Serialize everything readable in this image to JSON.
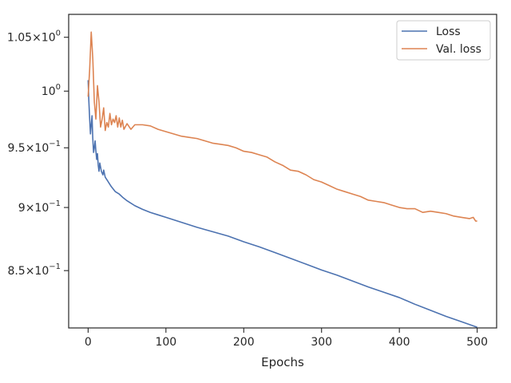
{
  "chart_data": {
    "type": "line",
    "title": "",
    "xlabel": "Epochs",
    "ylabel": "",
    "xlim": [
      -25,
      525
    ],
    "ylim": [
      0.807,
      1.072
    ],
    "yscale": "log",
    "grid": false,
    "legend_position": "top-right",
    "x_ticks": [
      {
        "value": 0,
        "label": "0"
      },
      {
        "value": 100,
        "label": "100"
      },
      {
        "value": 200,
        "label": "200"
      },
      {
        "value": 300,
        "label": "300"
      },
      {
        "value": 400,
        "label": "400"
      },
      {
        "value": 500,
        "label": "500"
      }
    ],
    "y_ticks": [
      {
        "value": 0.85,
        "base": "8.5",
        "exp": "−1"
      },
      {
        "value": 0.9,
        "base": "9",
        "exp": "−1"
      },
      {
        "value": 0.95,
        "base": "9.5",
        "exp": "−1"
      },
      {
        "value": 1.0,
        "base": "10",
        "exp": "0"
      },
      {
        "value": 1.05,
        "base": "1.05",
        "exp": "0"
      }
    ],
    "series": [
      {
        "name": "Loss",
        "color": "#4c72b0",
        "points": [
          [
            0,
            1.01
          ],
          [
            1,
            0.99
          ],
          [
            2,
            0.975
          ],
          [
            3,
            0.962
          ],
          [
            4,
            0.97
          ],
          [
            5,
            0.978
          ],
          [
            6,
            0.958
          ],
          [
            7,
            0.946
          ],
          [
            8,
            0.95
          ],
          [
            9,
            0.956
          ],
          [
            10,
            0.947
          ],
          [
            11,
            0.94
          ],
          [
            12,
            0.945
          ],
          [
            13,
            0.935
          ],
          [
            14,
            0.93
          ],
          [
            15,
            0.937
          ],
          [
            17,
            0.93
          ],
          [
            19,
            0.927
          ],
          [
            20,
            0.931
          ],
          [
            22,
            0.925
          ],
          [
            25,
            0.922
          ],
          [
            28,
            0.919
          ],
          [
            30,
            0.917
          ],
          [
            35,
            0.913
          ],
          [
            40,
            0.911
          ],
          [
            45,
            0.908
          ],
          [
            50,
            0.9055
          ],
          [
            60,
            0.9015
          ],
          [
            70,
            0.8985
          ],
          [
            80,
            0.896
          ],
          [
            90,
            0.894
          ],
          [
            100,
            0.892
          ],
          [
            120,
            0.888
          ],
          [
            140,
            0.884
          ],
          [
            160,
            0.8805
          ],
          [
            180,
            0.877
          ],
          [
            200,
            0.8725
          ],
          [
            220,
            0.8685
          ],
          [
            240,
            0.864
          ],
          [
            260,
            0.8595
          ],
          [
            280,
            0.855
          ],
          [
            300,
            0.8505
          ],
          [
            320,
            0.8465
          ],
          [
            340,
            0.842
          ],
          [
            360,
            0.8375
          ],
          [
            380,
            0.8335
          ],
          [
            400,
            0.8295
          ],
          [
            420,
            0.8245
          ],
          [
            440,
            0.82
          ],
          [
            460,
            0.8155
          ],
          [
            480,
            0.8115
          ],
          [
            500,
            0.8075
          ]
        ]
      },
      {
        "name": "Val. loss",
        "color": "#dd8452",
        "points": [
          [
            0,
            0.995
          ],
          [
            2,
            1.02
          ],
          [
            4,
            1.055
          ],
          [
            6,
            1.03
          ],
          [
            8,
            0.99
          ],
          [
            10,
            0.975
          ],
          [
            12,
            1.005
          ],
          [
            14,
            0.99
          ],
          [
            16,
            0.968
          ],
          [
            18,
            0.975
          ],
          [
            20,
            0.985
          ],
          [
            22,
            0.965
          ],
          [
            24,
            0.972
          ],
          [
            26,
            0.968
          ],
          [
            28,
            0.98
          ],
          [
            30,
            0.97
          ],
          [
            32,
            0.975
          ],
          [
            34,
            0.972
          ],
          [
            36,
            0.978
          ],
          [
            38,
            0.968
          ],
          [
            40,
            0.976
          ],
          [
            42,
            0.968
          ],
          [
            44,
            0.974
          ],
          [
            46,
            0.966
          ],
          [
            50,
            0.971
          ],
          [
            55,
            0.966
          ],
          [
            60,
            0.97
          ],
          [
            70,
            0.97
          ],
          [
            80,
            0.969
          ],
          [
            90,
            0.966
          ],
          [
            100,
            0.964
          ],
          [
            110,
            0.962
          ],
          [
            120,
            0.96
          ],
          [
            130,
            0.959
          ],
          [
            140,
            0.958
          ],
          [
            150,
            0.956
          ],
          [
            160,
            0.954
          ],
          [
            170,
            0.953
          ],
          [
            180,
            0.952
          ],
          [
            190,
            0.95
          ],
          [
            200,
            0.947
          ],
          [
            210,
            0.946
          ],
          [
            220,
            0.944
          ],
          [
            230,
            0.942
          ],
          [
            240,
            0.938
          ],
          [
            250,
            0.935
          ],
          [
            260,
            0.931
          ],
          [
            270,
            0.93
          ],
          [
            280,
            0.927
          ],
          [
            290,
            0.923
          ],
          [
            300,
            0.921
          ],
          [
            310,
            0.918
          ],
          [
            320,
            0.915
          ],
          [
            330,
            0.913
          ],
          [
            340,
            0.911
          ],
          [
            350,
            0.909
          ],
          [
            360,
            0.906
          ],
          [
            370,
            0.905
          ],
          [
            380,
            0.904
          ],
          [
            390,
            0.902
          ],
          [
            400,
            0.9
          ],
          [
            410,
            0.899
          ],
          [
            420,
            0.899
          ],
          [
            430,
            0.896
          ],
          [
            440,
            0.897
          ],
          [
            450,
            0.896
          ],
          [
            460,
            0.895
          ],
          [
            470,
            0.893
          ],
          [
            480,
            0.892
          ],
          [
            490,
            0.891
          ],
          [
            495,
            0.892
          ],
          [
            498,
            0.889
          ],
          [
            500,
            0.889
          ]
        ]
      }
    ]
  }
}
